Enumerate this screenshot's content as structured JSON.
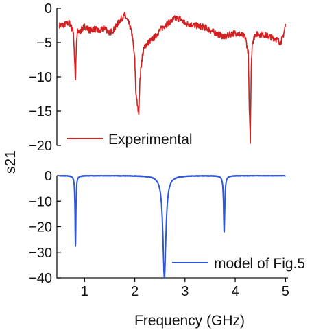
{
  "chart_data": {
    "type": "line",
    "shared_x": {
      "label": "Frequency (GHz)",
      "range": [
        0.45,
        5.05
      ],
      "ticks": [
        1,
        2,
        3,
        4,
        5
      ],
      "tick_labels": [
        "1",
        "2",
        "3",
        "4",
        "5"
      ]
    },
    "shared_y_label": "s21",
    "panels": [
      {
        "id": "top",
        "ylim": [
          -20,
          0
        ],
        "yticks": [
          0,
          -5,
          -10,
          -15,
          -20
        ],
        "ytick_labels": [
          "0",
          "-5",
          "-10",
          "-15",
          "-20"
        ],
        "legend_position": "lower-left",
        "series": [
          {
            "name": "Experimental",
            "color": "#d42020",
            "noise": true,
            "x": [
              0.5,
              0.6,
              0.7,
              0.78,
              0.8,
              0.82,
              0.84,
              0.86,
              0.88,
              0.9,
              1.0,
              1.1,
              1.2,
              1.3,
              1.4,
              1.5,
              1.6,
              1.7,
              1.8,
              1.9,
              1.95,
              2.0,
              2.02,
              2.04,
              2.06,
              2.08,
              2.1,
              2.12,
              2.15,
              2.2,
              2.3,
              2.4,
              2.5,
              2.6,
              2.7,
              2.8,
              2.9,
              3.0,
              3.2,
              3.4,
              3.6,
              3.8,
              3.9,
              4.0,
              4.1,
              4.2,
              4.26,
              4.28,
              4.3,
              4.32,
              4.34,
              4.4,
              4.5,
              4.6,
              4.7,
              4.8,
              4.9,
              4.95,
              5.0
            ],
            "y": [
              -2.5,
              -2.4,
              -2.1,
              -3.5,
              -7.0,
              -10.8,
              -5.0,
              -3.4,
              -3.3,
              -3.5,
              -2.6,
              -3.2,
              -3.0,
              -3.4,
              -2.8,
              -3.6,
              -3.0,
              -1.8,
              -1.0,
              -2.5,
              -4.0,
              -7.5,
              -12.0,
              -13.5,
              -14.6,
              -15.0,
              -11.0,
              -9.0,
              -7.0,
              -5.5,
              -4.8,
              -4.2,
              -3.2,
              -2.5,
              -2.0,
              -1.5,
              -1.5,
              -2.2,
              -2.5,
              -2.8,
              -3.6,
              -4.2,
              -3.8,
              -3.6,
              -3.8,
              -4.2,
              -6.5,
              -15.0,
              -19.3,
              -8.0,
              -5.0,
              -3.8,
              -3.8,
              -3.9,
              -4.2,
              -4.4,
              -5.0,
              -4.2,
              -2.5
            ]
          }
        ]
      },
      {
        "id": "bottom",
        "ylim": [
          -40,
          0
        ],
        "yticks": [
          0,
          -10,
          -20,
          -30,
          -40
        ],
        "ytick_labels": [
          "0",
          "-10",
          "-20",
          "-30",
          "-40"
        ],
        "legend_position": "lower-right",
        "series": [
          {
            "name": "model of Fig.5",
            "color": "#2d57d8",
            "noise": false,
            "resonances": [
              {
                "f": 0.82,
                "depth": 28,
                "width": 0.01
              },
              {
                "f": 2.59,
                "depth": 40,
                "width": 0.036
              },
              {
                "f": 3.78,
                "depth": 22,
                "width": 0.014
              }
            ],
            "x_range": [
              0.5,
              5.0
            ]
          }
        ]
      }
    ]
  }
}
